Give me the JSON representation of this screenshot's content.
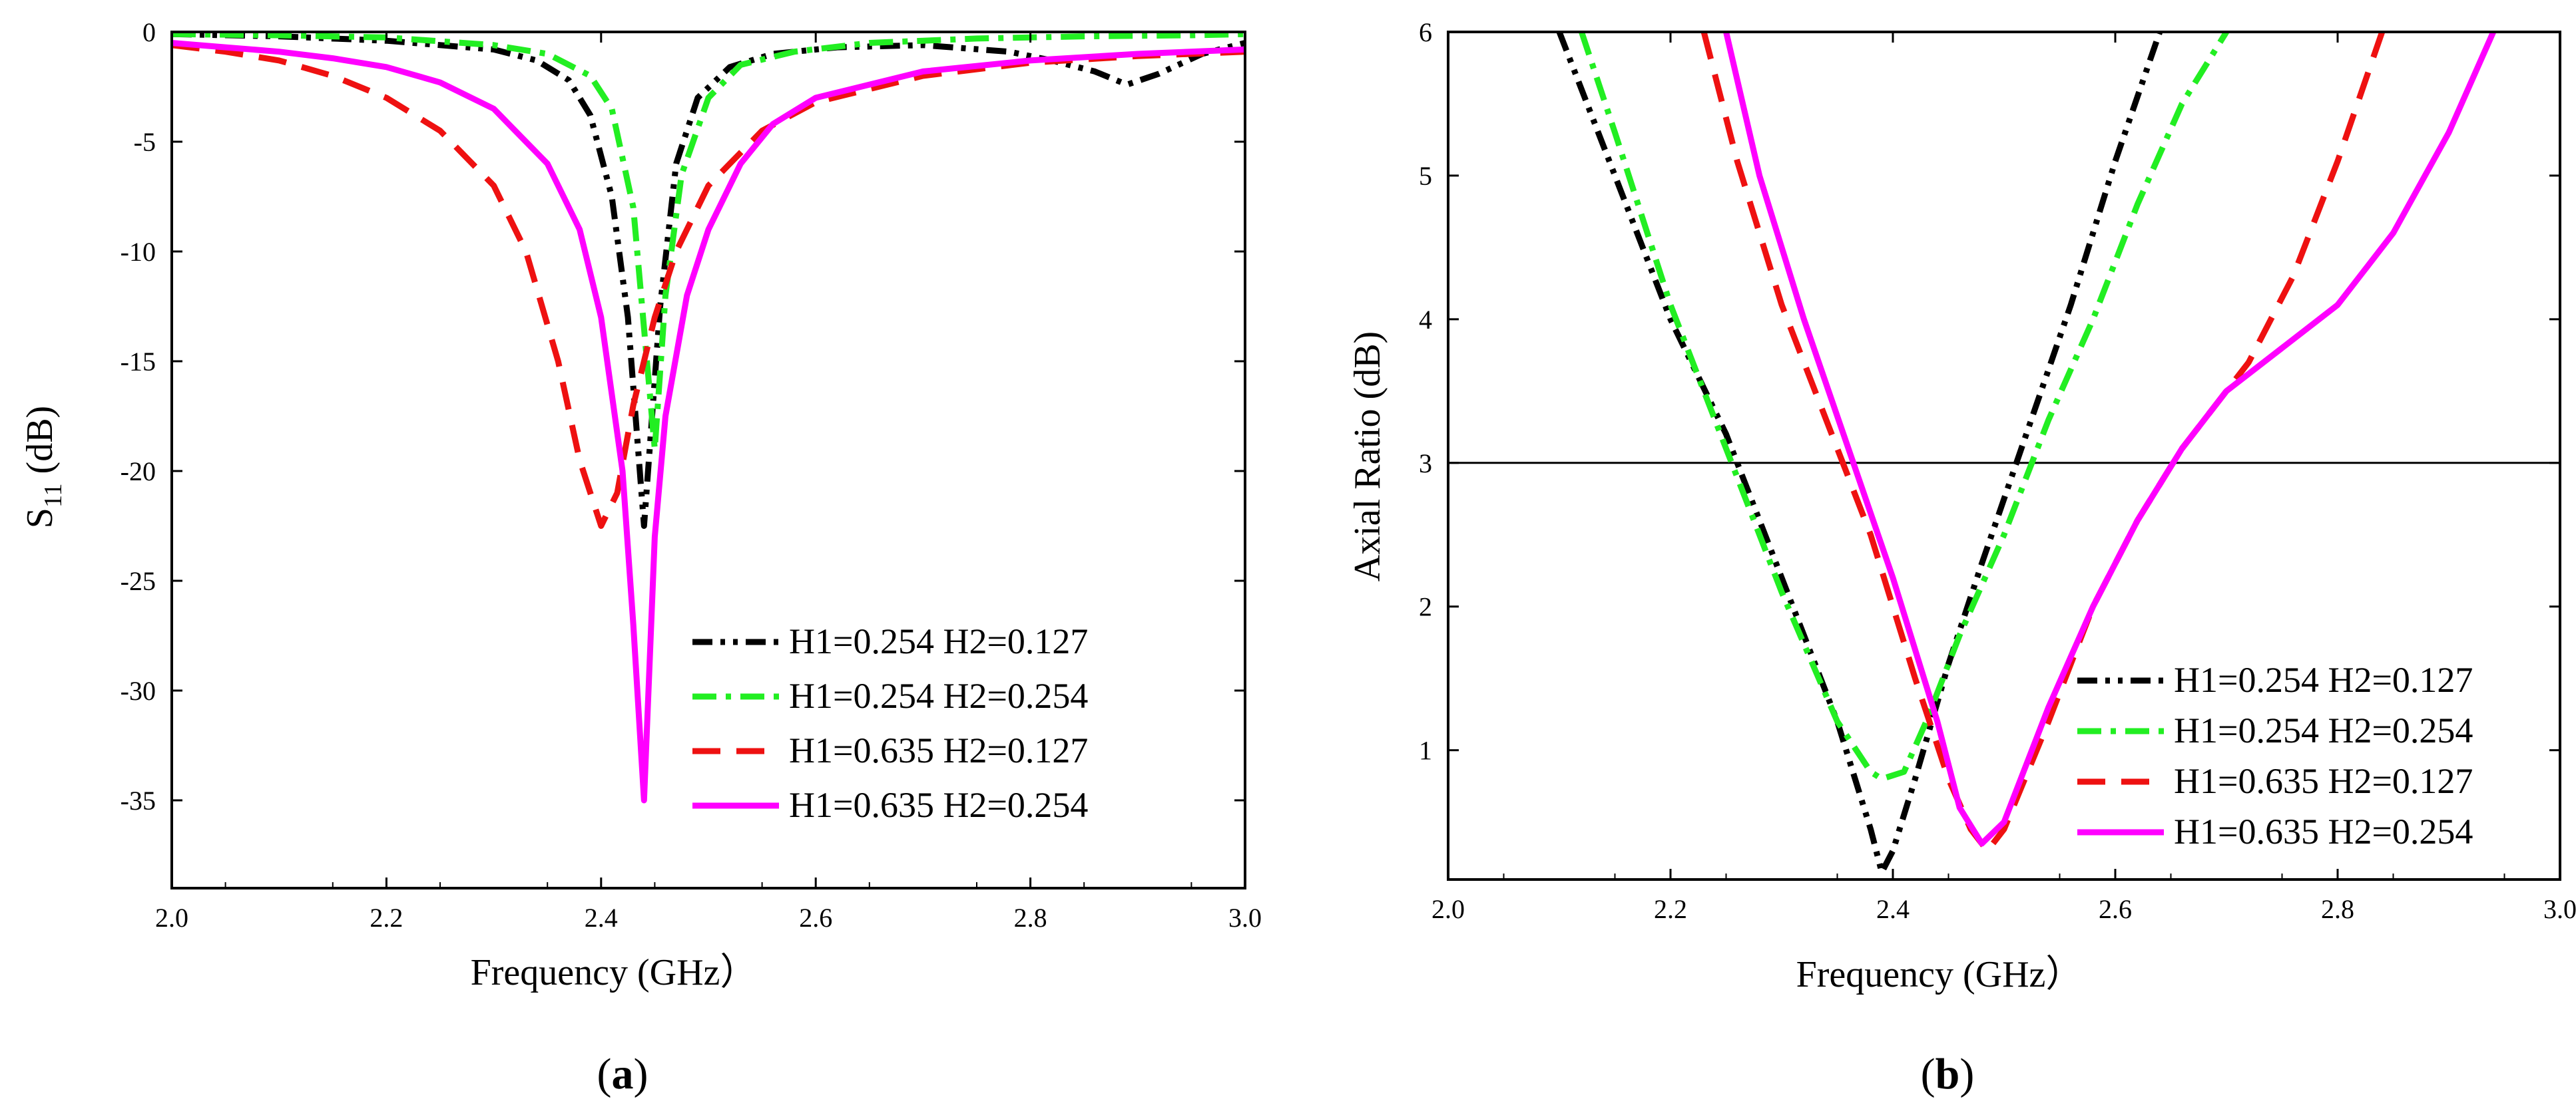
{
  "figure": {
    "panel_a_label": "(a)",
    "panel_b_label": "(b)"
  },
  "chart_data": [
    {
      "type": "line",
      "panel": "a",
      "title": "",
      "xlabel": "Frequency (GHz）",
      "ylabel": "S11 (dB)",
      "ylabel_main": "S",
      "ylabel_sub": "11",
      "ylabel_unit": " (dB)",
      "xlim": [
        2.0,
        3.0
      ],
      "ylim": [
        -39,
        0
      ],
      "xticks": [
        2.0,
        2.2,
        2.4,
        2.6,
        2.8,
        3.0
      ],
      "xtick_labels": [
        "2.0",
        "2.2",
        "2.4",
        "2.6",
        "2.8",
        "3.0"
      ],
      "yticks": [
        0,
        -5,
        -10,
        -15,
        -20,
        -25,
        -30,
        -35
      ],
      "ytick_labels": [
        "0",
        "-5",
        "-10",
        "-15",
        "-20",
        "-25",
        "-30",
        "-35"
      ],
      "legend_position": "bottom-right",
      "series": [
        {
          "name": "H1=0.254 H2=0.127",
          "color": "#000000",
          "dash": "dashdotdot",
          "x": [
            2.0,
            2.1,
            2.2,
            2.3,
            2.34,
            2.37,
            2.39,
            2.41,
            2.425,
            2.44,
            2.455,
            2.47,
            2.49,
            2.52,
            2.56,
            2.62,
            2.7,
            2.78,
            2.82,
            2.86,
            2.89,
            2.92,
            2.96,
            3.0
          ],
          "y": [
            -0.1,
            -0.2,
            -0.4,
            -0.8,
            -1.3,
            -2.2,
            -3.8,
            -7.5,
            -13.0,
            -22.5,
            -12.5,
            -6.0,
            -3.0,
            -1.6,
            -1.0,
            -0.7,
            -0.6,
            -0.9,
            -1.3,
            -1.8,
            -2.4,
            -1.9,
            -1.0,
            -0.5
          ]
        },
        {
          "name": "H1=0.254 H2=0.254",
          "color": "#22ee22",
          "dash": "dashdot",
          "x": [
            2.0,
            2.1,
            2.2,
            2.3,
            2.35,
            2.39,
            2.41,
            2.43,
            2.44,
            2.45,
            2.46,
            2.475,
            2.5,
            2.53,
            2.58,
            2.65,
            2.75,
            2.85,
            2.95,
            3.0
          ],
          "y": [
            -0.1,
            -0.15,
            -0.25,
            -0.6,
            -1.0,
            -2.0,
            -3.5,
            -8.0,
            -13.5,
            -19.0,
            -12.0,
            -6.5,
            -3.0,
            -1.5,
            -0.9,
            -0.5,
            -0.3,
            -0.2,
            -0.15,
            -0.1
          ]
        },
        {
          "name": "H1=0.635 H2=0.127",
          "color": "#ee1111",
          "dash": "dashed",
          "x": [
            2.0,
            2.05,
            2.1,
            2.15,
            2.2,
            2.25,
            2.3,
            2.33,
            2.36,
            2.38,
            2.4,
            2.415,
            2.43,
            2.44,
            2.45,
            2.47,
            2.5,
            2.55,
            2.6,
            2.7,
            2.8,
            2.9,
            3.0
          ],
          "y": [
            -0.6,
            -0.9,
            -1.3,
            -2.0,
            -3.0,
            -4.5,
            -7.0,
            -10.0,
            -15.0,
            -19.5,
            -22.5,
            -21.0,
            -17.0,
            -15.0,
            -13.0,
            -10.0,
            -7.0,
            -4.5,
            -3.2,
            -2.0,
            -1.4,
            -1.1,
            -0.9
          ]
        },
        {
          "name": "H1=0.635 H2=0.254",
          "color": "#ff00ff",
          "dash": "solid",
          "x": [
            2.0,
            2.05,
            2.1,
            2.15,
            2.2,
            2.25,
            2.3,
            2.35,
            2.38,
            2.4,
            2.42,
            2.43,
            2.44,
            2.45,
            2.46,
            2.48,
            2.5,
            2.53,
            2.56,
            2.6,
            2.7,
            2.8,
            2.9,
            3.0
          ],
          "y": [
            -0.5,
            -0.7,
            -0.9,
            -1.2,
            -1.6,
            -2.3,
            -3.5,
            -6.0,
            -9.0,
            -13.0,
            -20.0,
            -27.0,
            -35.0,
            -23.0,
            -17.5,
            -12.0,
            -9.0,
            -6.0,
            -4.2,
            -3.0,
            -1.8,
            -1.3,
            -1.0,
            -0.8
          ]
        }
      ]
    },
    {
      "type": "line",
      "panel": "b",
      "title": "",
      "xlabel": "Frequency (GHz）",
      "ylabel": "Axial Ratio (dB)",
      "xlim": [
        2.0,
        3.0
      ],
      "ylim": [
        0.1,
        6.0
      ],
      "xticks": [
        2.0,
        2.2,
        2.4,
        2.6,
        2.8,
        3.0
      ],
      "xtick_labels": [
        "2.0",
        "2.2",
        "2.4",
        "2.6",
        "2.8",
        "3.0"
      ],
      "yticks": [
        1,
        2,
        3,
        4,
        5,
        6
      ],
      "ytick_labels": [
        "1",
        "2",
        "3",
        "4",
        "5",
        "6"
      ],
      "reference_line_y": 3,
      "legend_position": "bottom-right",
      "series": [
        {
          "name": "H1=0.254 H2=0.127",
          "color": "#000000",
          "dash": "dashdotdot",
          "x": [
            2.1,
            2.15,
            2.2,
            2.25,
            2.3,
            2.35,
            2.38,
            2.39,
            2.4,
            2.42,
            2.45,
            2.48,
            2.52,
            2.56,
            2.6,
            2.64
          ],
          "y": [
            6.0,
            5.0,
            4.0,
            3.2,
            2.2,
            1.2,
            0.45,
            0.15,
            0.3,
            0.8,
            1.6,
            2.3,
            3.2,
            4.1,
            5.1,
            6.0
          ]
        },
        {
          "name": "H1=0.254 H2=0.254",
          "color": "#22ee22",
          "dash": "dashdot",
          "x": [
            2.12,
            2.15,
            2.2,
            2.25,
            2.3,
            2.35,
            2.38,
            2.39,
            2.41,
            2.43,
            2.46,
            2.5,
            2.54,
            2.58,
            2.62,
            2.66,
            2.7
          ],
          "y": [
            6.0,
            5.3,
            4.1,
            3.1,
            2.1,
            1.2,
            0.85,
            0.8,
            0.85,
            1.2,
            1.8,
            2.5,
            3.3,
            4.0,
            4.8,
            5.5,
            6.0
          ]
        },
        {
          "name": "H1=0.635 H2=0.127",
          "color": "#ee1111",
          "dash": "dashed",
          "x": [
            2.23,
            2.26,
            2.3,
            2.34,
            2.38,
            2.42,
            2.45,
            2.47,
            2.485,
            2.5,
            2.54,
            2.58,
            2.62,
            2.66,
            2.72,
            2.76,
            2.8,
            2.84
          ],
          "y": [
            6.0,
            5.1,
            4.1,
            3.3,
            2.5,
            1.5,
            0.8,
            0.45,
            0.3,
            0.45,
            1.2,
            2.0,
            2.6,
            3.1,
            3.7,
            4.3,
            5.1,
            6.0
          ]
        },
        {
          "name": "H1=0.635 H2=0.254",
          "color": "#ff00ff",
          "dash": "solid",
          "x": [
            2.25,
            2.28,
            2.32,
            2.36,
            2.4,
            2.44,
            2.46,
            2.48,
            2.5,
            2.54,
            2.58,
            2.62,
            2.66,
            2.7,
            2.75,
            2.8,
            2.85,
            2.9,
            2.94
          ],
          "y": [
            6.0,
            5.0,
            4.0,
            3.1,
            2.2,
            1.2,
            0.6,
            0.35,
            0.5,
            1.3,
            2.0,
            2.6,
            3.1,
            3.5,
            3.8,
            4.1,
            4.6,
            5.3,
            6.0
          ]
        }
      ]
    }
  ]
}
